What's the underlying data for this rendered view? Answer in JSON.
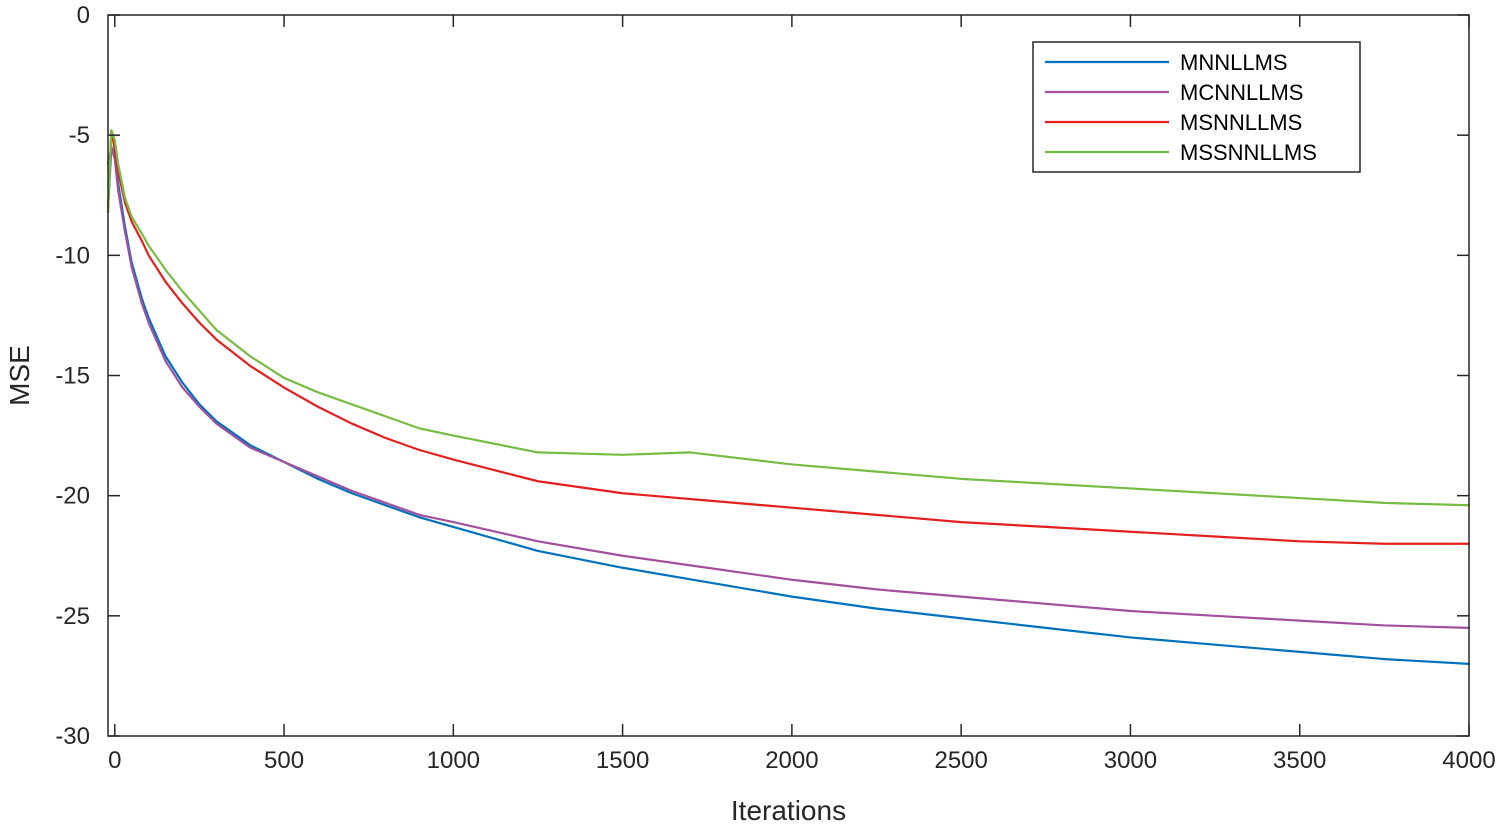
{
  "chart_data": {
    "type": "line",
    "title": "",
    "xlabel": "Iterations",
    "ylabel": "MSE",
    "xlim": [
      -20,
      4000
    ],
    "ylim": [
      -30,
      0
    ],
    "xticks": [
      0,
      500,
      1000,
      1500,
      2000,
      2500,
      3000,
      3500,
      4000
    ],
    "xtick_labels": [
      "0",
      "500",
      "1000",
      "1500",
      "2000",
      "2500",
      "3000",
      "3500",
      "4000"
    ],
    "yticks": [
      0,
      -5,
      -10,
      -15,
      -20,
      -25,
      -30
    ],
    "ytick_labels": [
      "0",
      "-5",
      "-10",
      "-15",
      "-20",
      "-25",
      "-30"
    ],
    "grid": false,
    "legend_position": "top-right",
    "series": [
      {
        "name": "MNNLLMS",
        "color": "#0072BD",
        "x": [
          -20,
          -10,
          0,
          10,
          30,
          50,
          80,
          100,
          150,
          200,
          250,
          300,
          400,
          500,
          600,
          700,
          800,
          900,
          1000,
          1250,
          1500,
          1750,
          2000,
          2250,
          2500,
          2750,
          3000,
          3250,
          3500,
          3750,
          4000
        ],
        "y": [
          -8.0,
          -5.5,
          -5.8,
          -7.0,
          -8.8,
          -10.3,
          -11.8,
          -12.6,
          -14.2,
          -15.3,
          -16.2,
          -16.9,
          -17.9,
          -18.6,
          -19.3,
          -19.9,
          -20.4,
          -20.9,
          -21.3,
          -22.3,
          -23.0,
          -23.6,
          -24.2,
          -24.7,
          -25.1,
          -25.5,
          -25.9,
          -26.2,
          -26.5,
          -26.8,
          -27.0
        ]
      },
      {
        "name": "MCNNLLMS",
        "color": "#A2509E",
        "x": [
          -20,
          -10,
          0,
          10,
          30,
          50,
          80,
          100,
          150,
          200,
          250,
          300,
          400,
          500,
          600,
          700,
          800,
          900,
          1000,
          1250,
          1500,
          1750,
          2000,
          2250,
          2500,
          2750,
          3000,
          3250,
          3500,
          3750,
          4000
        ],
        "y": [
          -6.2,
          -5.5,
          -6.0,
          -7.3,
          -9.0,
          -10.5,
          -12.0,
          -12.8,
          -14.4,
          -15.5,
          -16.3,
          -17.0,
          -18.0,
          -18.6,
          -19.2,
          -19.8,
          -20.3,
          -20.8,
          -21.1,
          -21.9,
          -22.5,
          -23.0,
          -23.5,
          -23.9,
          -24.2,
          -24.5,
          -24.8,
          -25.0,
          -25.2,
          -25.4,
          -25.5
        ]
      },
      {
        "name": "MSNNLLMS",
        "color": "#E3201E",
        "x": [
          -20,
          -10,
          0,
          10,
          30,
          50,
          80,
          100,
          150,
          200,
          250,
          300,
          400,
          500,
          600,
          700,
          800,
          900,
          1000,
          1250,
          1500,
          1750,
          2000,
          2250,
          2500,
          2750,
          3000,
          3250,
          3500,
          3750,
          4000
        ],
        "y": [
          -8.2,
          -4.8,
          -5.6,
          -6.5,
          -7.8,
          -8.6,
          -9.4,
          -10.0,
          -11.1,
          -12.0,
          -12.8,
          -13.5,
          -14.6,
          -15.5,
          -16.3,
          -17.0,
          -17.6,
          -18.1,
          -18.5,
          -19.4,
          -19.9,
          -20.2,
          -20.5,
          -20.8,
          -21.1,
          -21.3,
          -21.5,
          -21.7,
          -21.9,
          -22.0,
          -22.0
        ]
      },
      {
        "name": "MSSNNLLMS",
        "color": "#77BC43",
        "x": [
          -20,
          -10,
          0,
          10,
          30,
          50,
          80,
          100,
          150,
          200,
          250,
          300,
          400,
          500,
          600,
          700,
          800,
          900,
          1000,
          1250,
          1500,
          1700,
          2000,
          2250,
          2500,
          2750,
          3000,
          3250,
          3500,
          3750,
          4000
        ],
        "y": [
          -8.2,
          -4.8,
          -5.2,
          -6.2,
          -7.6,
          -8.4,
          -9.1,
          -9.6,
          -10.6,
          -11.5,
          -12.3,
          -13.1,
          -14.2,
          -15.1,
          -15.7,
          -16.2,
          -16.7,
          -17.2,
          -17.5,
          -18.2,
          -18.3,
          -18.2,
          -18.7,
          -19.0,
          -19.3,
          -19.5,
          -19.7,
          -19.9,
          -20.1,
          -20.3,
          -20.4
        ]
      }
    ]
  }
}
